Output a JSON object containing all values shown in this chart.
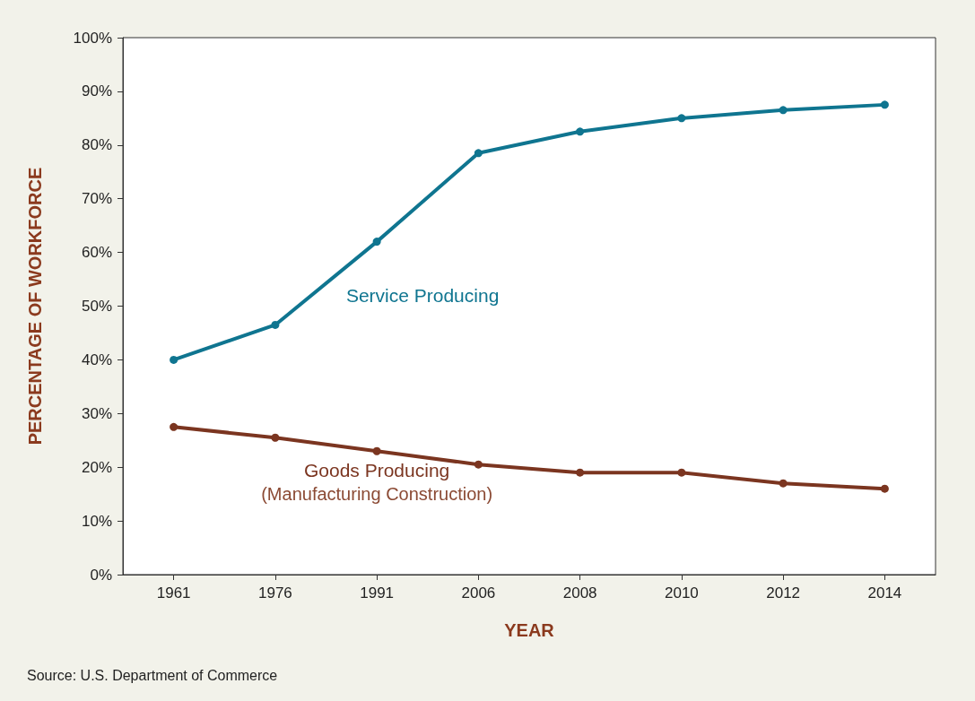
{
  "chart_data": {
    "type": "line",
    "xlabel": "YEAR",
    "ylabel": "PERCENTAGE OF WORKFORCE",
    "categories": [
      "1961",
      "1976",
      "1991",
      "2006",
      "2008",
      "2010",
      "2012",
      "2014"
    ],
    "series": [
      {
        "name": "Service Producing",
        "color": "#0f7590",
        "values": [
          40,
          46.5,
          62,
          78.5,
          82.5,
          85,
          86.5,
          87.5
        ]
      },
      {
        "name": "Goods Producing",
        "color": "#7b3520",
        "values": [
          27.5,
          25.5,
          23,
          20.5,
          19,
          19,
          17,
          16
        ]
      }
    ],
    "ylim": [
      0,
      100
    ],
    "yticks": [
      {
        "value": 0,
        "label": "0%"
      },
      {
        "value": 10,
        "label": "10%"
      },
      {
        "value": 20,
        "label": "20%"
      },
      {
        "value": 30,
        "label": "30%"
      },
      {
        "value": 40,
        "label": "40%"
      },
      {
        "value": 50,
        "label": "50%"
      },
      {
        "value": 60,
        "label": "60%"
      },
      {
        "value": 70,
        "label": "70%"
      },
      {
        "value": 80,
        "label": "80%"
      },
      {
        "value": 90,
        "label": "90%"
      },
      {
        "value": 100,
        "label": "100%"
      }
    ],
    "annotations": [
      "(Manufacturing Construction)",
      "Source: U.S. Department of Commerce"
    ],
    "grid": false,
    "legend": false,
    "marker": "circle",
    "line_style": "solid"
  }
}
